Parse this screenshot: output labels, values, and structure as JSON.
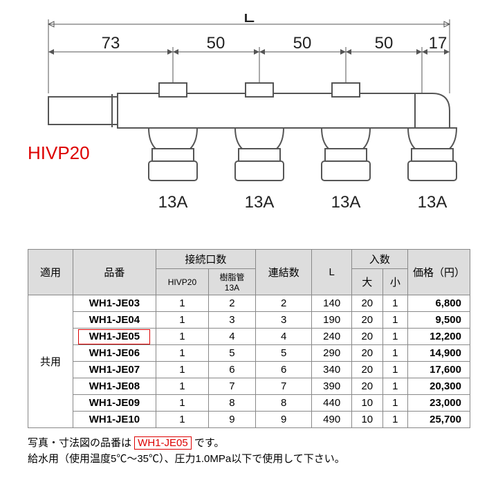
{
  "diagram": {
    "total_label": "L",
    "segments": [
      "73",
      "50",
      "50",
      "50",
      "17"
    ],
    "port_label": "13A",
    "port_count": 4,
    "inlet_label": "HIVP20",
    "inlet_color": "#cc0000",
    "stroke_color": "#555555",
    "dim_fontsize": 24,
    "L_fontsize": 30,
    "port_fontsize": 24
  },
  "table": {
    "headers": {
      "use": "適用",
      "code": "品番",
      "ports_group": "接続口数",
      "hivp": "HIVP20",
      "resin": "樹脂管\n13A",
      "links": "連結数",
      "L": "L",
      "qty_group": "入数",
      "big": "大",
      "small": "小",
      "price": "価格（円）"
    },
    "use_label": "共用",
    "rows": [
      {
        "code": "WH1-JE03",
        "hivp": "1",
        "resin": "2",
        "links": "2",
        "L": "140",
        "big": "20",
        "small": "1",
        "price": "6,800"
      },
      {
        "code": "WH1-JE04",
        "hivp": "1",
        "resin": "3",
        "links": "3",
        "L": "190",
        "big": "20",
        "small": "1",
        "price": "9,500"
      },
      {
        "code": "WH1-JE05",
        "hivp": "1",
        "resin": "4",
        "links": "4",
        "L": "240",
        "big": "20",
        "small": "1",
        "price": "12,200"
      },
      {
        "code": "WH1-JE06",
        "hivp": "1",
        "resin": "5",
        "links": "5",
        "L": "290",
        "big": "20",
        "small": "1",
        "price": "14,900"
      },
      {
        "code": "WH1-JE07",
        "hivp": "1",
        "resin": "6",
        "links": "6",
        "L": "340",
        "big": "20",
        "small": "1",
        "price": "17,600"
      },
      {
        "code": "WH1-JE08",
        "hivp": "1",
        "resin": "7",
        "links": "7",
        "L": "390",
        "big": "20",
        "small": "1",
        "price": "20,300"
      },
      {
        "code": "WH1-JE09",
        "hivp": "1",
        "resin": "8",
        "links": "8",
        "L": "440",
        "big": "10",
        "small": "1",
        "price": "23,000"
      },
      {
        "code": "WH1-JE10",
        "hivp": "1",
        "resin": "9",
        "links": "9",
        "L": "490",
        "big": "10",
        "small": "1",
        "price": "25,700"
      }
    ],
    "highlighted_row_index": 2,
    "header_bg": "#dddddd",
    "border_color": "#888888",
    "highlight_color": "#cc0000"
  },
  "notes": {
    "line1_a": "写真・寸法図の品番は ",
    "line1_code": "WH1-JE05",
    "line1_b": " です。",
    "line2": "給水用（使用温度5℃〜35℃）、圧力1.0MPa以下で使用して下さい。"
  }
}
